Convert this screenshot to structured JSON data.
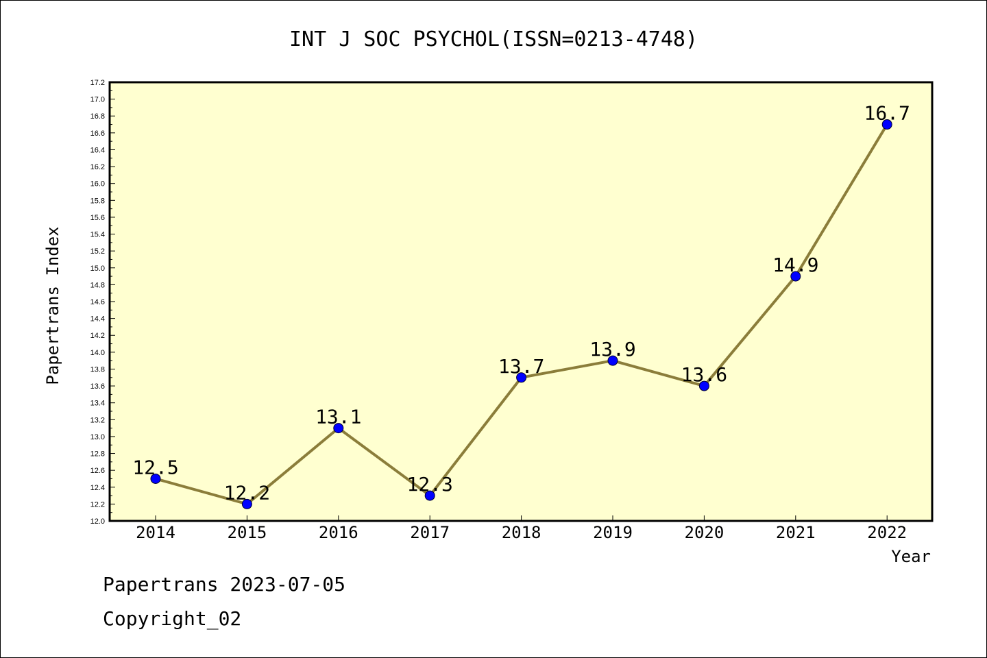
{
  "chart_data": {
    "type": "line",
    "title": "INT J SOC PSYCHOL(ISSN=0213-4748)",
    "xlabel": "Year",
    "ylabel": "Papertrans Index",
    "categories": [
      "2014",
      "2015",
      "2016",
      "2017",
      "2018",
      "2019",
      "2020",
      "2021",
      "2022"
    ],
    "values": [
      12.5,
      12.2,
      13.1,
      12.3,
      13.7,
      13.9,
      13.6,
      14.9,
      16.7
    ],
    "data_labels": [
      "12.5",
      "12.2",
      "13.1",
      "12.3",
      "13.7",
      "13.9",
      "13.6",
      "14.9",
      "16.7"
    ],
    "ylim": [
      12.0,
      17.2
    ],
    "ytick_step": 0.2,
    "grid": false,
    "colors": {
      "plot_background": "#ffffd0",
      "line": "#8b7d3a",
      "marker": "#0000ff"
    }
  },
  "footer": {
    "source_date": "Papertrans 2023-07-05",
    "copyright": "Copyright_02"
  }
}
